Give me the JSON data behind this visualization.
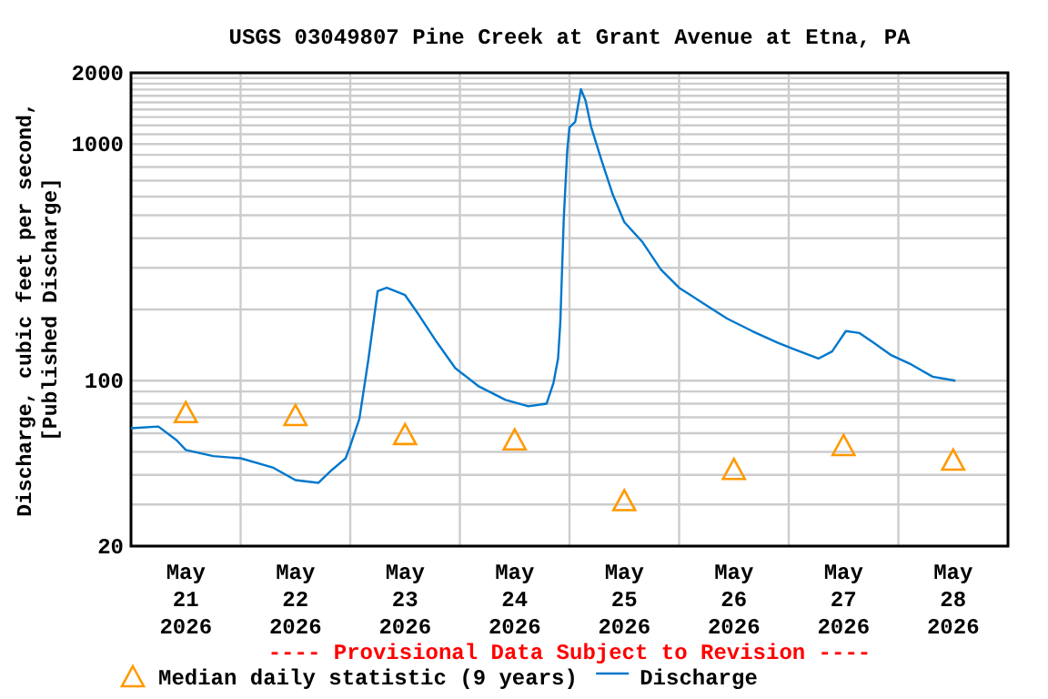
{
  "chart_data": {
    "type": "line",
    "title": "USGS 03049807 Pine Creek at Grant Avenue at Etna, PA",
    "ylabel": "Discharge, cubic feet per second,\n[Published Discharge]",
    "annotations": [
      "---- Provisional Data Subject to Revision ----"
    ],
    "log": true,
    "grid": true,
    "legend": "bottom",
    "xlim": [
      "2026-05-21T00:00",
      "2026-05-29T00:00"
    ],
    "xticks": [
      {
        "value": "2026-05-21T12:00",
        "label": "May\n21\n2026"
      },
      {
        "value": "2026-05-22T12:00",
        "label": "May\n22\n2026"
      },
      {
        "value": "2026-05-23T12:00",
        "label": "May\n23\n2026"
      },
      {
        "value": "2026-05-24T12:00",
        "label": "May\n24\n2026"
      },
      {
        "value": "2026-05-25T12:00",
        "label": "May\n25\n2026"
      },
      {
        "value": "2026-05-26T12:00",
        "label": "May\n26\n2026"
      },
      {
        "value": "2026-05-27T12:00",
        "label": "May\n27\n2026"
      },
      {
        "value": "2026-05-28T12:00",
        "label": "May\n28\n2026"
      },
      {
        "value": "2026-05-22T00:00",
        "label": null
      },
      {
        "value": "2026-05-23T00:00",
        "label": null
      },
      {
        "value": "2026-05-24T00:00",
        "label": null
      },
      {
        "value": "2026-05-25T00:00",
        "label": null
      },
      {
        "value": "2026-05-26T00:00",
        "label": null
      },
      {
        "value": "2026-05-27T00:00",
        "label": null
      },
      {
        "value": "2026-05-28T00:00",
        "label": null
      }
    ],
    "ylim": [
      20,
      2000
    ],
    "yticks": [
      20,
      {
        "value": 30,
        "label": null
      },
      {
        "value": 40,
        "label": null
      },
      {
        "value": 50,
        "label": null
      },
      {
        "value": 60,
        "label": null
      },
      {
        "value": 70,
        "label": null
      },
      {
        "value": 80,
        "label": null
      },
      {
        "value": 90,
        "label": null
      },
      100,
      {
        "value": 200,
        "label": null
      },
      {
        "value": 300,
        "label": null
      },
      {
        "value": 400,
        "label": null
      },
      {
        "value": 500,
        "label": null
      },
      {
        "value": 600,
        "label": null
      },
      {
        "value": 700,
        "label": null
      },
      {
        "value": 800,
        "label": null
      },
      {
        "value": 900,
        "label": null
      },
      1000,
      {
        "value": 1100,
        "label": null
      },
      {
        "value": 1200,
        "label": null
      },
      {
        "value": 1300,
        "label": null
      },
      {
        "value": 1400,
        "label": null
      },
      {
        "value": 1500,
        "label": null
      },
      {
        "value": 1600,
        "label": null
      },
      {
        "value": 1700,
        "label": null
      },
      {
        "value": 1800,
        "label": null
      },
      {
        "value": 1900,
        "label": null
      },
      2000
    ],
    "series": [
      {
        "name": "Median daily statistic (9 years)",
        "type": "scatter",
        "marker": "triangle",
        "color": "#ff9900",
        "x": [
          "2026-05-21T12:00",
          "2026-05-22T12:00",
          "2026-05-23T12:00",
          "2026-05-24T12:00",
          "2026-05-25T12:00",
          "2026-05-26T12:00",
          "2026-05-27T12:00",
          "2026-05-28T12:00"
        ],
        "values": [
          73,
          71,
          59,
          56,
          31,
          42,
          53,
          46
        ]
      },
      {
        "name": "Discharge",
        "marker": "none",
        "line_style": "solid",
        "color": "#0077cc",
        "x": [
          "2026-05-21T00:00",
          "2026-05-21T06:00",
          "2026-05-21T10:00",
          "2026-05-21T12:00",
          "2026-05-21T18:00",
          "2026-05-22T00:00",
          "2026-05-22T07:00",
          "2026-05-22T12:00",
          "2026-05-22T17:00",
          "2026-05-22T20:00",
          "2026-05-22T23:00",
          "2026-05-23T00:00",
          "2026-05-23T02:00",
          "2026-05-23T04:00",
          "2026-05-23T06:00",
          "2026-05-23T08:00",
          "2026-05-23T12:00",
          "2026-05-23T15:00",
          "2026-05-23T19:00",
          "2026-05-23T23:00",
          "2026-05-24T04:00",
          "2026-05-24T10:00",
          "2026-05-24T15:00",
          "2026-05-24T19:00",
          "2026-05-24T20:30",
          "2026-05-24T21:30",
          "2026-05-24T22:00",
          "2026-05-24T22:45",
          "2026-05-24T23:30",
          "2026-05-25T00:00",
          "2026-05-25T01:15",
          "2026-05-25T02:30",
          "2026-05-25T03:30",
          "2026-05-25T04:45",
          "2026-05-25T07:00",
          "2026-05-25T09:30",
          "2026-05-25T12:00",
          "2026-05-25T16:00",
          "2026-05-25T20:00",
          "2026-05-26T00:00",
          "2026-05-26T05:30",
          "2026-05-26T10:30",
          "2026-05-26T16:00",
          "2026-05-26T21:30",
          "2026-05-27T01:30",
          "2026-05-27T06:30",
          "2026-05-27T09:30",
          "2026-05-27T12:30",
          "2026-05-27T15:30",
          "2026-05-27T18:30",
          "2026-05-27T22:30",
          "2026-05-28T02:30",
          "2026-05-28T07:30",
          "2026-05-28T12:30"
        ],
        "values": [
          63,
          64,
          56,
          51,
          48,
          47,
          43,
          38,
          37,
          42,
          47,
          53,
          69,
          124,
          239,
          247,
          230,
          190,
          145,
          113,
          95,
          83,
          78,
          80,
          98,
          124,
          177,
          485,
          934,
          1176,
          1240,
          1706,
          1530,
          1180,
          855,
          610,
          468,
          385,
          295,
          247,
          211,
          183,
          162,
          145,
          135,
          124,
          133,
          162,
          159,
          145,
          128,
          118,
          104,
          100
        ]
      }
    ]
  }
}
